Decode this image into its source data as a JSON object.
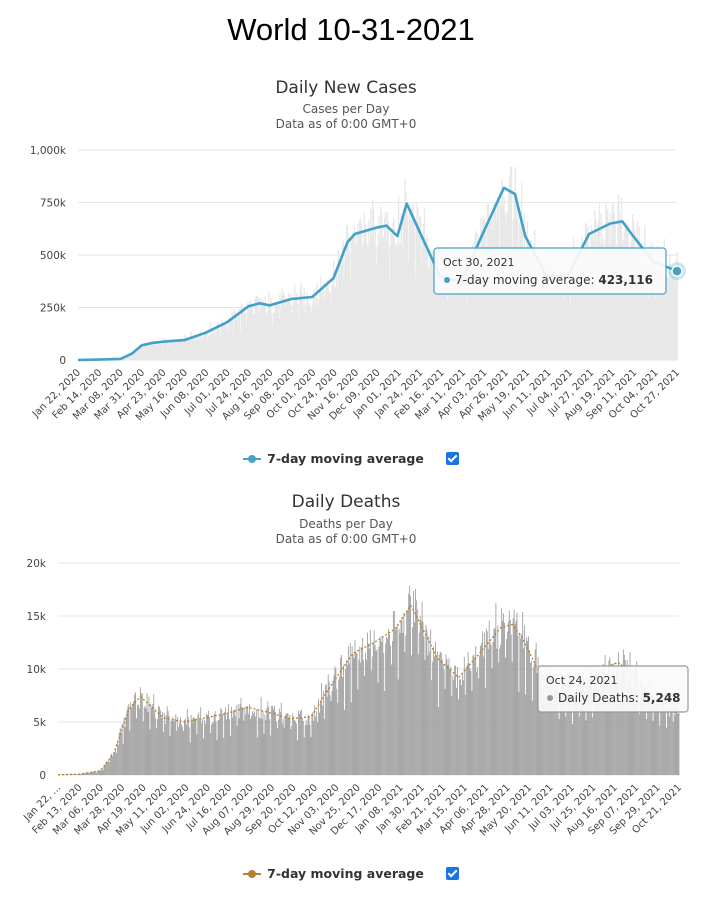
{
  "page_title": "World 10-31-2021",
  "colors": {
    "cases_line": "#43a1c9",
    "deaths_bar": "#999999",
    "deaths_avg": "#b5812e",
    "area_fill": "#e8e8e8",
    "checkbox": "#1a73e8"
  },
  "chart_data": [
    {
      "type": "area",
      "title": "Daily New Cases",
      "subtitle": "Cases per Day",
      "subtitle2": "Data as of 0:00 GMT+0",
      "ylim": [
        0,
        1000000
      ],
      "yticks": [
        0,
        250000,
        500000,
        750000,
        1000000
      ],
      "ytick_labels": [
        "0",
        "250k",
        "500k",
        "750k",
        "1,000k"
      ],
      "xlim": [
        "2020-01-22",
        "2021-10-30"
      ],
      "xtick_labels": [
        "Jan 22, 2020",
        "Feb 14, 2020",
        "Mar 08, 2020",
        "Mar 31, 2020",
        "Apr 23, 2020",
        "May 16, 2020",
        "Jun 08, 2020",
        "Jul 01, 2020",
        "Jul 24, 2020",
        "Aug 16, 2020",
        "Sep 08, 2020",
        "Oct 01, 2020",
        "Oct 24, 2020",
        "Nov 16, 2020",
        "Dec 09, 2020",
        "Jan 01, 2021",
        "Jan 24, 2021",
        "Feb 16, 2021",
        "Mar 11, 2021",
        "Apr 03, 2021",
        "Apr 26, 2021",
        "May 19, 2021",
        "Jun 11, 2021",
        "Jul 04, 2021",
        "Jul 27, 2021",
        "Aug 19, 2021",
        "Sep 11, 2021",
        "Oct 04, 2021",
        "Oct 27, 2021"
      ],
      "grid": true,
      "legend_position": "bottom-center",
      "series": [
        {
          "name": "7-day moving average",
          "x": [
            "2020-01-22",
            "2020-02-14",
            "2020-03-08",
            "2020-03-20",
            "2020-03-31",
            "2020-04-12",
            "2020-04-23",
            "2020-05-16",
            "2020-06-08",
            "2020-07-01",
            "2020-07-24",
            "2020-08-05",
            "2020-08-16",
            "2020-09-08",
            "2020-10-01",
            "2020-10-24",
            "2020-11-08",
            "2020-11-16",
            "2020-12-09",
            "2020-12-20",
            "2021-01-01",
            "2021-01-11",
            "2021-01-24",
            "2021-02-16",
            "2021-03-11",
            "2021-04-03",
            "2021-04-26",
            "2021-05-08",
            "2021-05-19",
            "2021-06-11",
            "2021-07-04",
            "2021-07-27",
            "2021-08-19",
            "2021-09-01",
            "2021-09-11",
            "2021-10-04",
            "2021-10-30"
          ],
          "values": [
            100,
            2000,
            5000,
            30000,
            70000,
            82000,
            87000,
            95000,
            130000,
            180000,
            255000,
            270000,
            260000,
            290000,
            300000,
            390000,
            560000,
            600000,
            630000,
            640000,
            590000,
            745000,
            620000,
            400000,
            370000,
            600000,
            820000,
            790000,
            590000,
            400000,
            400000,
            600000,
            650000,
            660000,
            600000,
            470000,
            423116
          ]
        }
      ],
      "tooltip": {
        "date": "Oct 30, 2021",
        "series": "7-day moving average",
        "value": "423,116"
      }
    },
    {
      "type": "bar",
      "title": "Daily Deaths",
      "subtitle": "Deaths per Day",
      "subtitle2": "Data as of 0:00 GMT+0",
      "ylim": [
        0,
        20000
      ],
      "yticks": [
        0,
        5000,
        10000,
        15000,
        20000
      ],
      "ytick_labels": [
        "0",
        "5k",
        "10k",
        "15k",
        "20k"
      ],
      "xlim": [
        "2020-01-22",
        "2021-10-31"
      ],
      "xtick_labels": [
        "Jan 22, ...",
        "Feb 13, 2020",
        "Mar 06, 2020",
        "Mar 28, 2020",
        "Apr 19, 2020",
        "May 11, 2020",
        "Jun 02, 2020",
        "Jun 24, 2020",
        "Jul 16, 2020",
        "Aug 07, 2020",
        "Aug 29, 2020",
        "Sep 20, 2020",
        "Oct 12, 2020",
        "Nov 03, 2020",
        "Nov 25, 2020",
        "Dec 17, 2020",
        "Jan 08, 2021",
        "Jan 30, 2021",
        "Feb 21, 2021",
        "Mar 15, 2021",
        "Apr 06, 2021",
        "Apr 28, 2021",
        "May 20, 2021",
        "Jun 11, 2021",
        "Jul 03, 2021",
        "Jul 25, 2021",
        "Aug 16, 2021",
        "Sep 07, 2021",
        "Sep 29, 2021",
        "Oct 21, 2021"
      ],
      "grid": true,
      "legend_position": "bottom-center",
      "series": [
        {
          "name": "Daily Deaths",
          "x": [
            "2020-01-22",
            "2020-02-13",
            "2020-03-06",
            "2020-03-20",
            "2020-04-05",
            "2020-04-17",
            "2020-05-11",
            "2020-06-02",
            "2020-06-24",
            "2020-07-16",
            "2020-08-07",
            "2020-08-29",
            "2020-09-20",
            "2020-10-12",
            "2020-11-03",
            "2020-11-25",
            "2020-12-17",
            "2021-01-08",
            "2021-01-24",
            "2021-01-30",
            "2021-02-21",
            "2021-03-15",
            "2021-04-06",
            "2021-04-28",
            "2021-05-10",
            "2021-05-20",
            "2021-06-11",
            "2021-07-03",
            "2021-07-25",
            "2021-08-16",
            "2021-08-28",
            "2021-09-07",
            "2021-09-29",
            "2021-10-21",
            "2021-10-31"
          ],
          "values": [
            20,
            80,
            400,
            2000,
            6200,
            7400,
            5400,
            5000,
            5400,
            5800,
            6400,
            5900,
            5300,
            5500,
            8600,
            11500,
            12500,
            13800,
            16000,
            15000,
            11000,
            9200,
            11500,
            13900,
            14200,
            13000,
            9000,
            8300,
            8600,
            10200,
            10600,
            10000,
            7400,
            6400,
            5600
          ]
        },
        {
          "name": "7-day moving average",
          "x": [
            "2020-01-22",
            "2020-02-13",
            "2020-03-06",
            "2020-03-20",
            "2020-04-05",
            "2020-04-17",
            "2020-05-11",
            "2020-06-02",
            "2020-06-24",
            "2020-07-16",
            "2020-08-07",
            "2020-08-29",
            "2020-09-20",
            "2020-10-12",
            "2020-11-03",
            "2020-11-25",
            "2020-12-17",
            "2021-01-08",
            "2021-01-24",
            "2021-01-30",
            "2021-02-21",
            "2021-03-15",
            "2021-04-06",
            "2021-04-28",
            "2021-05-10",
            "2021-05-20",
            "2021-06-11",
            "2021-07-03",
            "2021-07-25",
            "2021-08-16",
            "2021-08-28",
            "2021-09-07",
            "2021-09-29",
            "2021-10-21",
            "2021-10-31"
          ],
          "values": [
            20,
            80,
            400,
            2000,
            6200,
            7400,
            5400,
            5000,
            5400,
            5800,
            6400,
            5900,
            5300,
            5500,
            8600,
            11500,
            12500,
            13800,
            16000,
            15000,
            11000,
            9200,
            11500,
            13900,
            14200,
            13000,
            9000,
            8300,
            8600,
            10200,
            10600,
            10000,
            7400,
            6400,
            5600
          ]
        }
      ],
      "tooltip": {
        "date": "Oct 24, 2021",
        "series": "Daily Deaths",
        "value": "5,248"
      }
    }
  ]
}
